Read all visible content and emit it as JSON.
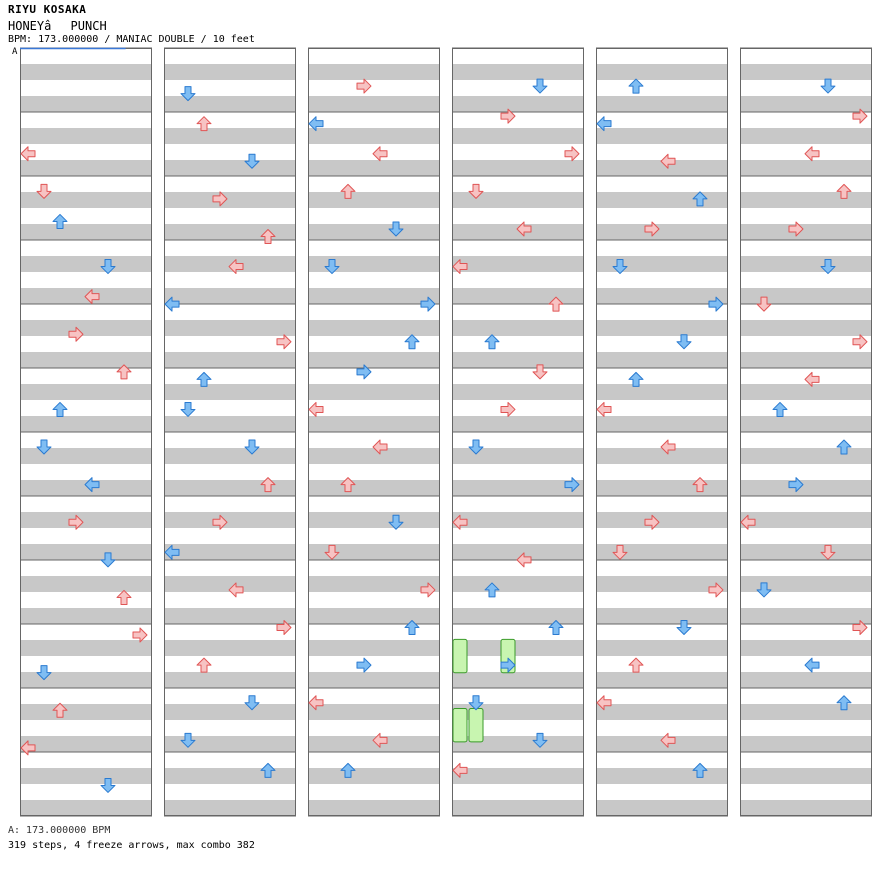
{
  "header": {
    "artist": "RIYU KOSAKA",
    "title": "HONEYâPUNCH",
    "bpm_line": "BPM: 173.000000 / MANIAC DOUBLE / 10 feet",
    "start_marker": "A"
  },
  "footer": {
    "bpm_label": "A: 173.000000 BPM",
    "stats": "319 steps, 4 freeze arrows, max combo 382"
  },
  "colors": {
    "red_fill": "#f7c3c3",
    "red_stroke": "#e05555",
    "blue_fill": "#7fbdf3",
    "blue_stroke": "#2a7ad0",
    "freeze_fill": "#c8f5b0",
    "freeze_stroke": "#3a9a2a",
    "stripe": "#c8c8c8",
    "border": "#666666"
  },
  "chart_data": {
    "type": "step-chart",
    "mode": "MANIAC DOUBLE",
    "lanes": [
      "P1-L",
      "P1-D",
      "P1-U",
      "P1-R",
      "P2-L",
      "P2-D",
      "P2-U",
      "P2-R"
    ],
    "columns": 6,
    "measures_per_column": 12,
    "notes": [
      [
        0,
        0.13,
        0
      ],
      [
        0,
        0.18,
        1
      ],
      [
        0,
        0.22,
        2
      ],
      [
        0,
        0.28,
        5
      ],
      [
        0,
        0.32,
        4
      ],
      [
        0,
        0.37,
        3
      ],
      [
        0,
        0.42,
        6
      ],
      [
        0,
        0.47,
        2
      ],
      [
        0,
        0.52,
        1
      ],
      [
        0,
        0.57,
        4
      ],
      [
        0,
        0.62,
        3
      ],
      [
        0,
        0.67,
        5
      ],
      [
        0,
        0.72,
        6
      ],
      [
        0,
        0.77,
        7
      ],
      [
        0,
        0.82,
        1
      ],
      [
        0,
        0.87,
        2
      ],
      [
        0,
        0.92,
        0
      ],
      [
        0,
        0.97,
        5
      ],
      [
        1,
        0.05,
        1
      ],
      [
        1,
        0.09,
        2
      ],
      [
        1,
        0.14,
        5
      ],
      [
        1,
        0.19,
        3
      ],
      [
        1,
        0.24,
        6
      ],
      [
        1,
        0.28,
        4
      ],
      [
        1,
        0.33,
        0
      ],
      [
        1,
        0.38,
        7
      ],
      [
        1,
        0.43,
        2
      ],
      [
        1,
        0.47,
        1
      ],
      [
        1,
        0.52,
        5
      ],
      [
        1,
        0.57,
        6
      ],
      [
        1,
        0.62,
        3
      ],
      [
        1,
        0.66,
        0
      ],
      [
        1,
        0.71,
        4
      ],
      [
        1,
        0.76,
        7
      ],
      [
        1,
        0.81,
        2
      ],
      [
        1,
        0.86,
        5
      ],
      [
        1,
        0.91,
        1
      ],
      [
        1,
        0.95,
        6
      ],
      [
        2,
        0.04,
        3
      ],
      [
        2,
        0.09,
        0
      ],
      [
        2,
        0.13,
        4
      ],
      [
        2,
        0.18,
        2
      ],
      [
        2,
        0.23,
        5
      ],
      [
        2,
        0.28,
        1
      ],
      [
        2,
        0.33,
        7
      ],
      [
        2,
        0.38,
        6
      ],
      [
        2,
        0.42,
        3
      ],
      [
        2,
        0.47,
        0
      ],
      [
        2,
        0.52,
        4
      ],
      [
        2,
        0.57,
        2
      ],
      [
        2,
        0.62,
        5
      ],
      [
        2,
        0.66,
        1
      ],
      [
        2,
        0.71,
        7
      ],
      [
        2,
        0.76,
        6
      ],
      [
        2,
        0.81,
        3
      ],
      [
        2,
        0.86,
        0
      ],
      [
        2,
        0.91,
        4
      ],
      [
        2,
        0.95,
        2
      ],
      [
        3,
        0.04,
        5
      ],
      [
        3,
        0.08,
        3
      ],
      [
        3,
        0.13,
        7
      ],
      [
        3,
        0.18,
        1
      ],
      [
        3,
        0.23,
        4
      ],
      [
        3,
        0.28,
        0
      ],
      [
        3,
        0.33,
        6
      ],
      [
        3,
        0.38,
        2
      ],
      [
        3,
        0.42,
        5
      ],
      [
        3,
        0.47,
        3
      ],
      [
        3,
        0.52,
        1
      ],
      [
        3,
        0.57,
        7
      ],
      [
        3,
        0.62,
        0
      ],
      [
        3,
        0.67,
        4
      ],
      [
        3,
        0.71,
        2
      ],
      [
        3,
        0.76,
        6
      ],
      [
        3,
        0.81,
        3
      ],
      [
        3,
        0.86,
        1
      ],
      [
        3,
        0.91,
        5
      ],
      [
        3,
        0.95,
        0
      ],
      [
        4,
        0.04,
        2
      ],
      [
        4,
        0.09,
        0
      ],
      [
        4,
        0.14,
        4
      ],
      [
        4,
        0.19,
        6
      ],
      [
        4,
        0.23,
        3
      ],
      [
        4,
        0.28,
        1
      ],
      [
        4,
        0.33,
        7
      ],
      [
        4,
        0.38,
        5
      ],
      [
        4,
        0.43,
        2
      ],
      [
        4,
        0.47,
        0
      ],
      [
        4,
        0.52,
        4
      ],
      [
        4,
        0.57,
        6
      ],
      [
        4,
        0.62,
        3
      ],
      [
        4,
        0.66,
        1
      ],
      [
        4,
        0.71,
        7
      ],
      [
        4,
        0.76,
        5
      ],
      [
        4,
        0.81,
        2
      ],
      [
        4,
        0.86,
        0
      ],
      [
        4,
        0.91,
        4
      ],
      [
        4,
        0.95,
        6
      ],
      [
        5,
        0.04,
        5
      ],
      [
        5,
        0.08,
        7
      ],
      [
        5,
        0.13,
        4
      ],
      [
        5,
        0.18,
        6
      ],
      [
        5,
        0.23,
        3
      ],
      [
        5,
        0.28,
        5
      ],
      [
        5,
        0.33,
        1
      ],
      [
        5,
        0.38,
        7
      ],
      [
        5,
        0.43,
        4
      ],
      [
        5,
        0.47,
        2
      ],
      [
        5,
        0.52,
        6
      ],
      [
        5,
        0.57,
        3
      ],
      [
        5,
        0.62,
        0
      ],
      [
        5,
        0.66,
        5
      ],
      [
        5,
        0.71,
        1
      ],
      [
        5,
        0.76,
        7
      ],
      [
        5,
        0.81,
        4
      ],
      [
        5,
        0.86,
        6
      ]
    ],
    "freezes": [
      [
        3,
        0.77,
        0,
        0.79
      ],
      [
        3,
        0.77,
        3,
        0.79
      ],
      [
        3,
        0.86,
        0,
        0.88
      ],
      [
        3,
        0.86,
        1,
        0.88
      ]
    ]
  }
}
